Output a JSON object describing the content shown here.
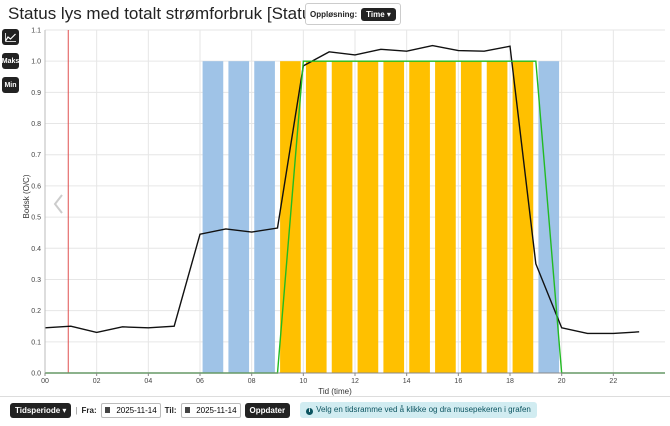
{
  "header": {
    "title": "Status lys med totalt strømforbruk [Status, kW]",
    "resolution_label": "Oppløsning:",
    "resolution_value": "Time"
  },
  "side_buttons": {
    "chart_icon": "line-chart-icon",
    "max_label": "Maks",
    "min_label": "Min"
  },
  "chart_data": {
    "type": "bar",
    "xlabel": "Tid (time)",
    "ylabel": "Bodsk (O/C)",
    "ylim": [
      0,
      1.1
    ],
    "xlim": [
      0,
      24
    ],
    "yticks": [
      "0.0",
      "0.1",
      "0.2",
      "0.3",
      "0.4",
      "0.5",
      "0.6",
      "0.7",
      "0.8",
      "0.9",
      "1.0",
      "1.1"
    ],
    "xticks": [
      "00",
      "02",
      "04",
      "06",
      "08",
      "10",
      "12",
      "14",
      "16",
      "18",
      "20",
      "22"
    ],
    "grid": true,
    "marker_x": 0.9,
    "bars": [
      {
        "x": 6,
        "value": 1.0,
        "color": "#9fc3e7"
      },
      {
        "x": 7,
        "value": 1.0,
        "color": "#9fc3e7"
      },
      {
        "x": 8,
        "value": 1.0,
        "color": "#9fc3e7"
      },
      {
        "x": 9,
        "value": 1.0,
        "color": "#ffc000"
      },
      {
        "x": 10,
        "value": 1.0,
        "color": "#ffc000"
      },
      {
        "x": 11,
        "value": 1.0,
        "color": "#ffc000"
      },
      {
        "x": 12,
        "value": 1.0,
        "color": "#ffc000"
      },
      {
        "x": 13,
        "value": 1.0,
        "color": "#ffc000"
      },
      {
        "x": 14,
        "value": 1.0,
        "color": "#ffc000"
      },
      {
        "x": 15,
        "value": 1.0,
        "color": "#ffc000"
      },
      {
        "x": 16,
        "value": 1.0,
        "color": "#ffc000"
      },
      {
        "x": 17,
        "value": 1.0,
        "color": "#ffc000"
      },
      {
        "x": 18,
        "value": 1.0,
        "color": "#ffc000"
      },
      {
        "x": 19,
        "value": 1.0,
        "color": "#9fc3e7"
      }
    ],
    "series": [
      {
        "color": "#111111",
        "x": [
          0,
          1,
          2,
          3,
          4,
          5,
          6,
          7,
          8,
          9,
          10,
          11,
          12,
          13,
          14,
          15,
          16,
          17,
          18,
          19,
          20,
          21,
          22,
          23
        ],
        "values": [
          0.145,
          0.15,
          0.13,
          0.148,
          0.145,
          0.15,
          0.445,
          0.462,
          0.452,
          0.465,
          0.985,
          1.03,
          1.02,
          1.038,
          1.032,
          1.05,
          1.034,
          1.032,
          1.048,
          0.35,
          0.145,
          0.127,
          0.127,
          0.132
        ]
      },
      {
        "color": "#22bb22",
        "x": [
          0,
          9,
          10,
          19,
          20,
          24
        ],
        "values": [
          0,
          0,
          1.0,
          1.0,
          0,
          0
        ]
      }
    ]
  },
  "footer": {
    "period_label": "Tidsperiode",
    "from_label": "Fra:",
    "from_value": "2025-11-14",
    "to_label": "Til:",
    "to_value": "2025-11-14",
    "update_label": "Oppdater",
    "info_text": "Velg en tidsramme ved å klikke og dra musepekeren i grafen"
  }
}
